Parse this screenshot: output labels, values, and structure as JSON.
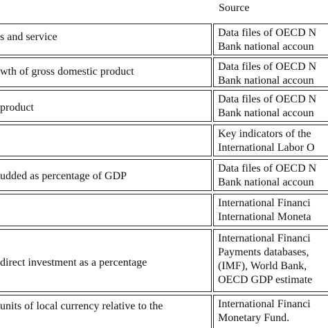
{
  "table": {
    "header": {
      "source_label": "Source"
    },
    "rows": [
      {
        "indicator": "s and service",
        "source": [
          "Data files of OECD N",
          "Bank national accoun"
        ]
      },
      {
        "indicator": "wth of gross domestic product",
        "source": [
          "Data files of OECD N",
          "Bank national accoun"
        ]
      },
      {
        "indicator": "product",
        "source": [
          "Data files of OECD N",
          "Bank national accoun"
        ]
      },
      {
        "indicator": "",
        "source": [
          "Key indicators of the",
          "International Labor O"
        ]
      },
      {
        "indicator": "udded as percentage of GDP",
        "source": [
          "Data files of OECD N",
          "Bank national accoun"
        ]
      },
      {
        "indicator": "",
        "source": [
          "International Financi",
          "International Moneta"
        ]
      },
      {
        "indicator": "direct investment as a percentage",
        "source": [
          "International Financi",
          "Payments databases,",
          "(IMF), World Bank,",
          "OECD GDP estimate"
        ]
      },
      {
        "indicator": "units of local currency relative to the",
        "source": [
          "International Financi",
          "Monetary Fund."
        ]
      }
    ]
  }
}
